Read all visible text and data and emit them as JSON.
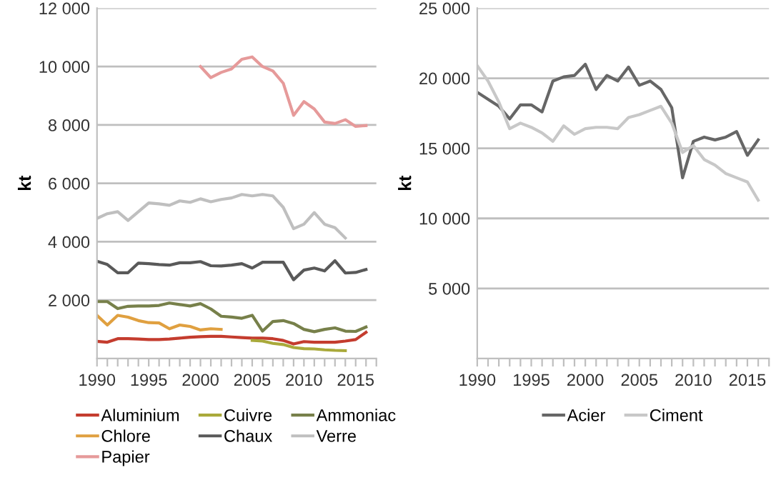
{
  "chart_data": [
    {
      "type": "line",
      "ylabel": "kt",
      "xlim": [
        1990,
        2017
      ],
      "ylim": [
        0,
        12000
      ],
      "yticks": [
        2000,
        4000,
        6000,
        8000,
        10000,
        12000
      ],
      "xticks": [
        {
          "value": 1990,
          "label": "1990"
        },
        {
          "value": 1991,
          "label": null
        },
        {
          "value": 1992,
          "label": null
        },
        {
          "value": 1993,
          "label": null
        },
        {
          "value": 1994,
          "label": null
        },
        {
          "value": 1995,
          "label": "1995"
        },
        {
          "value": 1996,
          "label": null
        },
        {
          "value": 1997,
          "label": null
        },
        {
          "value": 1998,
          "label": null
        },
        {
          "value": 1999,
          "label": null
        },
        {
          "value": 2000,
          "label": "2000"
        },
        {
          "value": 2001,
          "label": null
        },
        {
          "value": 2002,
          "label": null
        },
        {
          "value": 2003,
          "label": null
        },
        {
          "value": 2004,
          "label": null
        },
        {
          "value": 2005,
          "label": "2005"
        },
        {
          "value": 2006,
          "label": null
        },
        {
          "value": 2007,
          "label": null
        },
        {
          "value": 2008,
          "label": null
        },
        {
          "value": 2009,
          "label": null
        },
        {
          "value": 2010,
          "label": "2010"
        },
        {
          "value": 2011,
          "label": null
        },
        {
          "value": 2012,
          "label": null
        },
        {
          "value": 2013,
          "label": null
        },
        {
          "value": 2014,
          "label": null
        },
        {
          "value": 2015,
          "label": "2015"
        },
        {
          "value": 2016,
          "label": null
        },
        {
          "value": 2017,
          "label": null
        }
      ],
      "grid": "y",
      "legend": "bottom",
      "marker": "none",
      "line_style": "solid",
      "series": [
        {
          "name": "Aluminium",
          "color": "#c43c2e",
          "x": [
            1990,
            1991,
            1992,
            1993,
            1994,
            1995,
            1996,
            1997,
            1998,
            1999,
            2000,
            2001,
            2002,
            2003,
            2004,
            2005,
            2006,
            2007,
            2008,
            2009,
            2010,
            2011,
            2012,
            2013,
            2014,
            2015,
            2016
          ],
          "values": [
            590,
            560,
            680,
            680,
            670,
            650,
            650,
            670,
            700,
            730,
            750,
            760,
            760,
            740,
            720,
            700,
            700,
            680,
            620,
            500,
            580,
            560,
            560,
            560,
            600,
            650,
            900
          ]
        },
        {
          "name": "Cuivre",
          "color": "#a9a93a",
          "x": [
            2005,
            2006,
            2007,
            2008,
            2009,
            2010,
            2011,
            2012,
            2013,
            2014
          ],
          "values": [
            620,
            600,
            520,
            480,
            380,
            340,
            330,
            300,
            280,
            270
          ]
        },
        {
          "name": "Ammoniac",
          "color": "#77804a",
          "x": [
            1990,
            1991,
            1992,
            1993,
            1994,
            1995,
            1996,
            1997,
            1998,
            1999,
            2000,
            2001,
            2002,
            2003,
            2004,
            2005,
            2006,
            2007,
            2008,
            2009,
            2010,
            2011,
            2012,
            2013,
            2014,
            2015,
            2016
          ],
          "values": [
            1950,
            1950,
            1710,
            1790,
            1800,
            1800,
            1820,
            1900,
            1850,
            1800,
            1880,
            1700,
            1450,
            1420,
            1380,
            1480,
            940,
            1270,
            1300,
            1200,
            1000,
            920,
            1000,
            1050,
            940,
            930,
            1080
          ]
        },
        {
          "name": "Chlore",
          "color": "#e0a040",
          "x": [
            1990,
            1991,
            1992,
            1993,
            1994,
            1995,
            1996,
            1997,
            1998,
            1999,
            2000,
            2001,
            2002
          ],
          "values": [
            1480,
            1150,
            1480,
            1420,
            1300,
            1230,
            1220,
            1020,
            1150,
            1100,
            980,
            1020,
            1000
          ]
        },
        {
          "name": "Chaux",
          "color": "#595959",
          "x": [
            1990,
            1991,
            1992,
            1993,
            1994,
            1995,
            1996,
            1997,
            1998,
            1999,
            2000,
            2001,
            2002,
            2003,
            2004,
            2005,
            2006,
            2007,
            2008,
            2009,
            2010,
            2011,
            2012,
            2013,
            2014,
            2015,
            2016
          ],
          "values": [
            3330,
            3220,
            2940,
            2940,
            3270,
            3250,
            3220,
            3200,
            3280,
            3280,
            3320,
            3180,
            3170,
            3200,
            3250,
            3100,
            3300,
            3300,
            3300,
            2700,
            3030,
            3100,
            3000,
            3350,
            2930,
            2950,
            3050
          ]
        },
        {
          "name": "Verre",
          "color": "#bfbfbf",
          "x": [
            1990,
            1991,
            1992,
            1993,
            1994,
            1995,
            1996,
            1997,
            1998,
            1999,
            2000,
            2001,
            2002,
            2003,
            2004,
            2005,
            2006,
            2007,
            2008,
            2009,
            2010,
            2011,
            2012,
            2013,
            2014
          ],
          "values": [
            4800,
            4960,
            5030,
            4730,
            5030,
            5330,
            5300,
            5250,
            5400,
            5350,
            5470,
            5370,
            5450,
            5500,
            5620,
            5570,
            5620,
            5570,
            5180,
            4450,
            4600,
            5000,
            4600,
            4480,
            4130
          ]
        },
        {
          "name": "Papier",
          "color": "#e69a9a",
          "x": [
            2000,
            2001,
            2002,
            2003,
            2004,
            2005,
            2006,
            2007,
            2008,
            2009,
            2010,
            2011,
            2012,
            2013,
            2014,
            2015,
            2016
          ],
          "values": [
            10000,
            9620,
            9800,
            9920,
            10250,
            10330,
            10000,
            9850,
            9430,
            8330,
            8800,
            8550,
            8100,
            8050,
            8180,
            7950,
            7980
          ]
        }
      ]
    },
    {
      "type": "line",
      "ylabel": "kt",
      "xlim": [
        1990,
        2017
      ],
      "ylim": [
        0,
        25000
      ],
      "yticks": [
        5000,
        10000,
        15000,
        20000,
        25000
      ],
      "xticks": [
        {
          "value": 1990,
          "label": "1990"
        },
        {
          "value": 1991,
          "label": null
        },
        {
          "value": 1992,
          "label": null
        },
        {
          "value": 1993,
          "label": null
        },
        {
          "value": 1994,
          "label": null
        },
        {
          "value": 1995,
          "label": "1995"
        },
        {
          "value": 1996,
          "label": null
        },
        {
          "value": 1997,
          "label": null
        },
        {
          "value": 1998,
          "label": null
        },
        {
          "value": 1999,
          "label": null
        },
        {
          "value": 2000,
          "label": "2000"
        },
        {
          "value": 2001,
          "label": null
        },
        {
          "value": 2002,
          "label": null
        },
        {
          "value": 2003,
          "label": null
        },
        {
          "value": 2004,
          "label": null
        },
        {
          "value": 2005,
          "label": "2005"
        },
        {
          "value": 2006,
          "label": null
        },
        {
          "value": 2007,
          "label": null
        },
        {
          "value": 2008,
          "label": null
        },
        {
          "value": 2009,
          "label": null
        },
        {
          "value": 2010,
          "label": "2010"
        },
        {
          "value": 2011,
          "label": null
        },
        {
          "value": 2012,
          "label": null
        },
        {
          "value": 2013,
          "label": null
        },
        {
          "value": 2014,
          "label": null
        },
        {
          "value": 2015,
          "label": "2015"
        },
        {
          "value": 2016,
          "label": null
        },
        {
          "value": 2017,
          "label": null
        }
      ],
      "grid": "y",
      "legend": "bottom",
      "marker": "none",
      "line_style": "solid",
      "series": [
        {
          "name": "Acier",
          "color": "#666666",
          "x": [
            1990,
            1991,
            1992,
            1993,
            1994,
            1995,
            1996,
            1997,
            1998,
            1999,
            2000,
            2001,
            2002,
            2003,
            2004,
            2005,
            2006,
            2007,
            2008,
            2009,
            2010,
            2011,
            2012,
            2013,
            2014,
            2015,
            2016
          ],
          "values": [
            19000,
            18500,
            18000,
            17100,
            18100,
            18100,
            17600,
            19800,
            20100,
            20200,
            21000,
            19200,
            20200,
            19800,
            20800,
            19500,
            19800,
            19200,
            17900,
            12900,
            15500,
            15800,
            15600,
            15800,
            16200,
            14500,
            15600
          ]
        },
        {
          "name": "Ciment",
          "color": "#c8c8c8",
          "x": [
            1990,
            1991,
            1992,
            1993,
            1994,
            1995,
            1996,
            1997,
            1998,
            1999,
            2000,
            2001,
            2002,
            2003,
            2004,
            2005,
            2006,
            2007,
            2008,
            2009,
            2010,
            2011,
            2012,
            2013,
            2014,
            2015,
            2016
          ],
          "values": [
            20900,
            19800,
            18300,
            16400,
            16800,
            16500,
            16100,
            15500,
            16600,
            16000,
            16400,
            16500,
            16500,
            16400,
            17200,
            17400,
            17700,
            18000,
            16800,
            14700,
            15200,
            14200,
            13800,
            13200,
            12900,
            12600,
            11300
          ]
        }
      ]
    }
  ]
}
